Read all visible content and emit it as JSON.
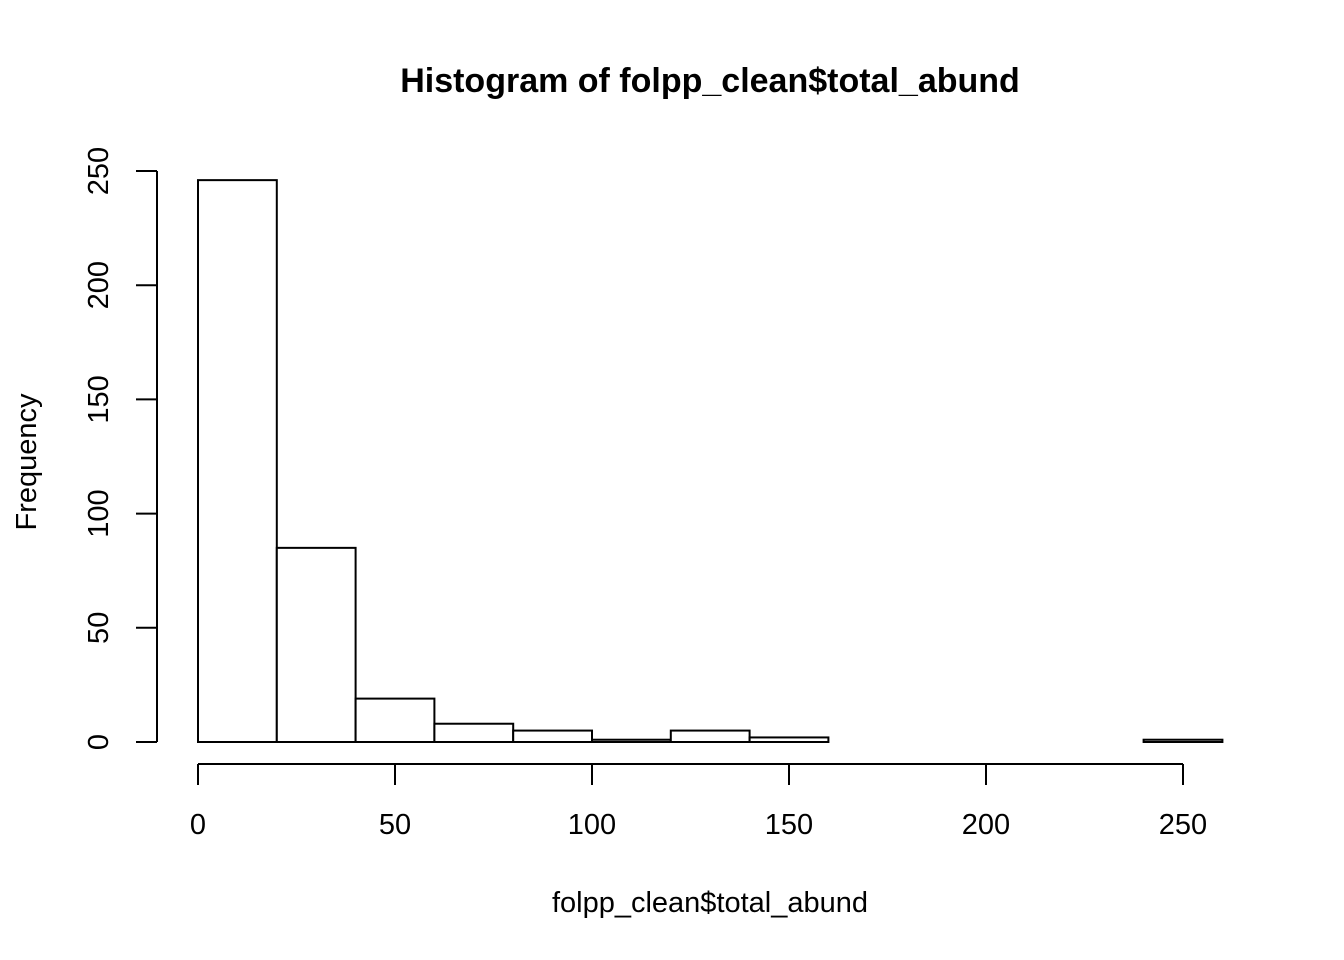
{
  "chart_data": {
    "type": "bar",
    "title": "Histogram of folpp_clean$total_abund",
    "xlabel": "folpp_clean$total_abund",
    "ylabel": "Frequency",
    "bin_width": 20,
    "bins": [
      {
        "start": 0,
        "end": 20,
        "count": 246
      },
      {
        "start": 20,
        "end": 40,
        "count": 85
      },
      {
        "start": 40,
        "end": 60,
        "count": 19
      },
      {
        "start": 60,
        "end": 80,
        "count": 8
      },
      {
        "start": 80,
        "end": 100,
        "count": 5
      },
      {
        "start": 100,
        "end": 120,
        "count": 1
      },
      {
        "start": 120,
        "end": 140,
        "count": 5
      },
      {
        "start": 140,
        "end": 160,
        "count": 2
      },
      {
        "start": 160,
        "end": 180,
        "count": 0
      },
      {
        "start": 180,
        "end": 200,
        "count": 0
      },
      {
        "start": 200,
        "end": 220,
        "count": 0
      },
      {
        "start": 220,
        "end": 240,
        "count": 0
      },
      {
        "start": 240,
        "end": 260,
        "count": 1
      }
    ],
    "xlim": [
      0,
      260
    ],
    "ylim": [
      0,
      250
    ],
    "x_ticks": [
      0,
      50,
      100,
      150,
      200,
      250
    ],
    "x_tick_labels": [
      "0",
      "50",
      "100",
      "150",
      "200",
      "250"
    ],
    "y_ticks": [
      0,
      50,
      100,
      150,
      200,
      250
    ],
    "y_tick_labels": [
      "0",
      "50",
      "100",
      "150",
      "200",
      "250"
    ],
    "grid": false,
    "legend": "none",
    "colors": {
      "bar_fill": "#ffffff",
      "bar_stroke": "#000000",
      "background": "#ffffff"
    }
  }
}
